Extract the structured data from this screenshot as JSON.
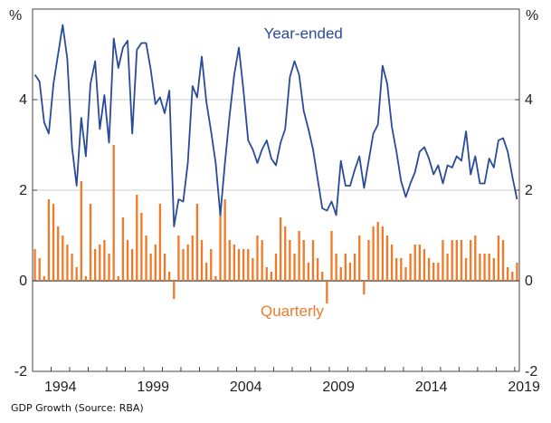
{
  "caption": "GDP Growth (Source: RBA)",
  "chart_data": {
    "type": "bar+line",
    "y_unit_left": "%",
    "y_unit_right": "%",
    "ylim": [
      -2,
      6
    ],
    "yticks": [
      "-2",
      "0",
      "2",
      "4"
    ],
    "xtick_labels": [
      "1994",
      "1999",
      "2004",
      "2009",
      "2014",
      "2019"
    ],
    "xtick_years": [
      1994,
      1999,
      2004,
      2009,
      2014,
      2019
    ],
    "grid": "horizontal",
    "colors": {
      "year_ended": "#2a4a9a",
      "quarterly": "#f07a28",
      "grid": "#cfcfcf",
      "frame": "#444444"
    },
    "series": [
      {
        "name": "Year-ended",
        "type": "line",
        "start": 1993.0,
        "step": 0.25,
        "values": [
          4.55,
          4.4,
          3.5,
          3.25,
          4.35,
          5.0,
          5.65,
          4.9,
          2.95,
          2.1,
          3.6,
          2.75,
          4.35,
          4.85,
          3.35,
          4.1,
          3.05,
          5.35,
          4.7,
          5.15,
          5.3,
          3.25,
          5.1,
          5.25,
          5.25,
          4.65,
          3.9,
          4.05,
          3.7,
          4.2,
          1.2,
          1.8,
          1.75,
          2.6,
          4.3,
          4.05,
          4.95,
          3.95,
          3.3,
          2.6,
          1.45,
          2.6,
          3.65,
          4.55,
          5.15,
          4.2,
          3.1,
          2.9,
          2.6,
          2.9,
          3.1,
          2.7,
          2.55,
          3.05,
          3.35,
          4.5,
          4.85,
          4.55,
          3.75,
          3.35,
          2.9,
          2.25,
          1.6,
          1.55,
          1.75,
          1.45,
          2.65,
          2.1,
          2.1,
          2.45,
          2.75,
          2.05,
          2.65,
          3.25,
          3.45,
          4.75,
          4.35,
          3.4,
          2.85,
          2.2,
          1.85,
          2.15,
          2.4,
          2.85,
          2.95,
          2.7,
          2.35,
          2.55,
          2.15,
          2.55,
          2.5,
          2.75,
          2.65,
          3.3,
          2.35,
          2.75,
          2.15,
          2.15,
          2.7,
          2.5,
          3.1,
          3.15,
          2.85,
          2.3,
          1.8
        ]
      },
      {
        "name": "Quarterly",
        "type": "bar",
        "start": 1993.0,
        "step": 0.25,
        "values": [
          0.7,
          0.5,
          0.1,
          1.8,
          1.7,
          1.2,
          1.0,
          0.8,
          0.6,
          0.3,
          2.2,
          0.1,
          1.7,
          0.7,
          0.8,
          0.9,
          0.6,
          3.0,
          0.1,
          1.4,
          0.9,
          0.7,
          1.9,
          1.5,
          1.0,
          0.6,
          0.8,
          1.7,
          0.6,
          0.2,
          -0.4,
          1.0,
          0.7,
          0.8,
          1.0,
          1.7,
          0.9,
          0.4,
          0.7,
          0.1,
          1.6,
          1.8,
          0.9,
          0.8,
          0.7,
          0.7,
          0.7,
          0.5,
          1.0,
          0.9,
          0.3,
          0.2,
          0.6,
          1.4,
          1.2,
          0.9,
          0.6,
          1.1,
          0.9,
          0.4,
          0.9,
          0.5,
          0.2,
          -0.5,
          1.1,
          0.6,
          0.3,
          0.6,
          0.4,
          0.6,
          1.0,
          -0.3,
          0.9,
          1.2,
          1.3,
          1.2,
          1.0,
          0.8,
          0.5,
          0.5,
          0.3,
          0.6,
          0.8,
          0.8,
          0.7,
          0.5,
          0.4,
          0.4,
          0.9,
          0.6,
          0.9,
          0.9,
          0.9,
          0.5,
          0.9,
          1.0,
          0.6,
          0.6,
          0.6,
          0.5,
          1.0,
          0.9,
          0.3,
          0.2,
          0.4
        ]
      }
    ],
    "annotations": [
      {
        "text": "Year-ended",
        "x": 2007.6,
        "y": 5.35,
        "color": "#2a4a9a"
      },
      {
        "text": "Quarterly",
        "x": 2007.0,
        "y": -0.78,
        "color": "#f07a28"
      }
    ]
  }
}
